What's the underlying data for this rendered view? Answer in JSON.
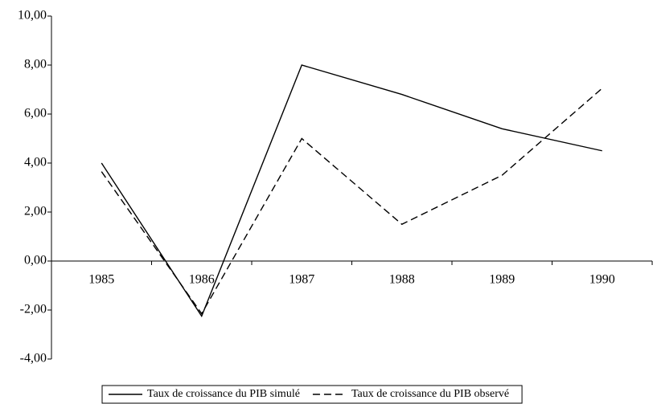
{
  "chart_data": {
    "type": "line",
    "categories": [
      "1985",
      "1986",
      "1987",
      "1988",
      "1989",
      "1990"
    ],
    "series": [
      {
        "name": "Taux de croissance du PIB simulé",
        "color": "#000000",
        "style": "solid",
        "values": [
          4.0,
          -2.25,
          8.0,
          6.8,
          5.4,
          4.5
        ]
      },
      {
        "name": "Taux de croissance du PIB observé",
        "color": "#000000",
        "style": "dashed",
        "values": [
          3.65,
          -2.15,
          5.0,
          1.5,
          3.5,
          7.05
        ]
      }
    ],
    "ylim": [
      -4,
      10
    ],
    "yticks": [
      {
        "value": -4,
        "label": "-4,00"
      },
      {
        "value": -2,
        "label": "-2,00"
      },
      {
        "value": 0,
        "label": "0,00"
      },
      {
        "value": 2,
        "label": "2,00"
      },
      {
        "value": 4,
        "label": "4,00"
      },
      {
        "value": 6,
        "label": "6,00"
      },
      {
        "value": 8,
        "label": "8,00"
      },
      {
        "value": 10,
        "label": "10,00"
      }
    ],
    "legend": "bottom"
  }
}
